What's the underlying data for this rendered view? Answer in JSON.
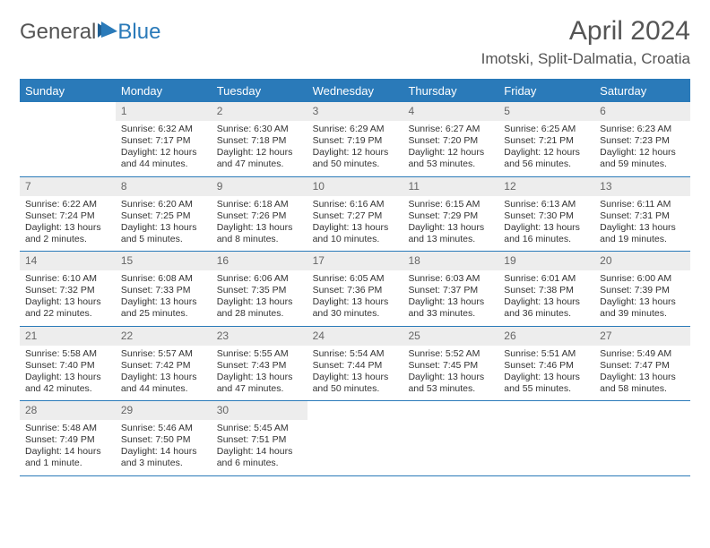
{
  "logo": {
    "part1": "General",
    "part2": "Blue"
  },
  "title": "April 2024",
  "location": "Imotski, Split-Dalmatia, Croatia",
  "colors": {
    "accent": "#2a7ab9",
    "header_bg": "#ededed",
    "text": "#333333",
    "muted": "#555555"
  },
  "day_names": [
    "Sunday",
    "Monday",
    "Tuesday",
    "Wednesday",
    "Thursday",
    "Friday",
    "Saturday"
  ],
  "weeks": [
    [
      {
        "blank": true
      },
      {
        "n": "1",
        "sunrise": "Sunrise: 6:32 AM",
        "sunset": "Sunset: 7:17 PM",
        "day1": "Daylight: 12 hours",
        "day2": "and 44 minutes."
      },
      {
        "n": "2",
        "sunrise": "Sunrise: 6:30 AM",
        "sunset": "Sunset: 7:18 PM",
        "day1": "Daylight: 12 hours",
        "day2": "and 47 minutes."
      },
      {
        "n": "3",
        "sunrise": "Sunrise: 6:29 AM",
        "sunset": "Sunset: 7:19 PM",
        "day1": "Daylight: 12 hours",
        "day2": "and 50 minutes."
      },
      {
        "n": "4",
        "sunrise": "Sunrise: 6:27 AM",
        "sunset": "Sunset: 7:20 PM",
        "day1": "Daylight: 12 hours",
        "day2": "and 53 minutes."
      },
      {
        "n": "5",
        "sunrise": "Sunrise: 6:25 AM",
        "sunset": "Sunset: 7:21 PM",
        "day1": "Daylight: 12 hours",
        "day2": "and 56 minutes."
      },
      {
        "n": "6",
        "sunrise": "Sunrise: 6:23 AM",
        "sunset": "Sunset: 7:23 PM",
        "day1": "Daylight: 12 hours",
        "day2": "and 59 minutes."
      }
    ],
    [
      {
        "n": "7",
        "sunrise": "Sunrise: 6:22 AM",
        "sunset": "Sunset: 7:24 PM",
        "day1": "Daylight: 13 hours",
        "day2": "and 2 minutes."
      },
      {
        "n": "8",
        "sunrise": "Sunrise: 6:20 AM",
        "sunset": "Sunset: 7:25 PM",
        "day1": "Daylight: 13 hours",
        "day2": "and 5 minutes."
      },
      {
        "n": "9",
        "sunrise": "Sunrise: 6:18 AM",
        "sunset": "Sunset: 7:26 PM",
        "day1": "Daylight: 13 hours",
        "day2": "and 8 minutes."
      },
      {
        "n": "10",
        "sunrise": "Sunrise: 6:16 AM",
        "sunset": "Sunset: 7:27 PM",
        "day1": "Daylight: 13 hours",
        "day2": "and 10 minutes."
      },
      {
        "n": "11",
        "sunrise": "Sunrise: 6:15 AM",
        "sunset": "Sunset: 7:29 PM",
        "day1": "Daylight: 13 hours",
        "day2": "and 13 minutes."
      },
      {
        "n": "12",
        "sunrise": "Sunrise: 6:13 AM",
        "sunset": "Sunset: 7:30 PM",
        "day1": "Daylight: 13 hours",
        "day2": "and 16 minutes."
      },
      {
        "n": "13",
        "sunrise": "Sunrise: 6:11 AM",
        "sunset": "Sunset: 7:31 PM",
        "day1": "Daylight: 13 hours",
        "day2": "and 19 minutes."
      }
    ],
    [
      {
        "n": "14",
        "sunrise": "Sunrise: 6:10 AM",
        "sunset": "Sunset: 7:32 PM",
        "day1": "Daylight: 13 hours",
        "day2": "and 22 minutes."
      },
      {
        "n": "15",
        "sunrise": "Sunrise: 6:08 AM",
        "sunset": "Sunset: 7:33 PM",
        "day1": "Daylight: 13 hours",
        "day2": "and 25 minutes."
      },
      {
        "n": "16",
        "sunrise": "Sunrise: 6:06 AM",
        "sunset": "Sunset: 7:35 PM",
        "day1": "Daylight: 13 hours",
        "day2": "and 28 minutes."
      },
      {
        "n": "17",
        "sunrise": "Sunrise: 6:05 AM",
        "sunset": "Sunset: 7:36 PM",
        "day1": "Daylight: 13 hours",
        "day2": "and 30 minutes."
      },
      {
        "n": "18",
        "sunrise": "Sunrise: 6:03 AM",
        "sunset": "Sunset: 7:37 PM",
        "day1": "Daylight: 13 hours",
        "day2": "and 33 minutes."
      },
      {
        "n": "19",
        "sunrise": "Sunrise: 6:01 AM",
        "sunset": "Sunset: 7:38 PM",
        "day1": "Daylight: 13 hours",
        "day2": "and 36 minutes."
      },
      {
        "n": "20",
        "sunrise": "Sunrise: 6:00 AM",
        "sunset": "Sunset: 7:39 PM",
        "day1": "Daylight: 13 hours",
        "day2": "and 39 minutes."
      }
    ],
    [
      {
        "n": "21",
        "sunrise": "Sunrise: 5:58 AM",
        "sunset": "Sunset: 7:40 PM",
        "day1": "Daylight: 13 hours",
        "day2": "and 42 minutes."
      },
      {
        "n": "22",
        "sunrise": "Sunrise: 5:57 AM",
        "sunset": "Sunset: 7:42 PM",
        "day1": "Daylight: 13 hours",
        "day2": "and 44 minutes."
      },
      {
        "n": "23",
        "sunrise": "Sunrise: 5:55 AM",
        "sunset": "Sunset: 7:43 PM",
        "day1": "Daylight: 13 hours",
        "day2": "and 47 minutes."
      },
      {
        "n": "24",
        "sunrise": "Sunrise: 5:54 AM",
        "sunset": "Sunset: 7:44 PM",
        "day1": "Daylight: 13 hours",
        "day2": "and 50 minutes."
      },
      {
        "n": "25",
        "sunrise": "Sunrise: 5:52 AM",
        "sunset": "Sunset: 7:45 PM",
        "day1": "Daylight: 13 hours",
        "day2": "and 53 minutes."
      },
      {
        "n": "26",
        "sunrise": "Sunrise: 5:51 AM",
        "sunset": "Sunset: 7:46 PM",
        "day1": "Daylight: 13 hours",
        "day2": "and 55 minutes."
      },
      {
        "n": "27",
        "sunrise": "Sunrise: 5:49 AM",
        "sunset": "Sunset: 7:47 PM",
        "day1": "Daylight: 13 hours",
        "day2": "and 58 minutes."
      }
    ],
    [
      {
        "n": "28",
        "sunrise": "Sunrise: 5:48 AM",
        "sunset": "Sunset: 7:49 PM",
        "day1": "Daylight: 14 hours",
        "day2": "and 1 minute."
      },
      {
        "n": "29",
        "sunrise": "Sunrise: 5:46 AM",
        "sunset": "Sunset: 7:50 PM",
        "day1": "Daylight: 14 hours",
        "day2": "and 3 minutes."
      },
      {
        "n": "30",
        "sunrise": "Sunrise: 5:45 AM",
        "sunset": "Sunset: 7:51 PM",
        "day1": "Daylight: 14 hours",
        "day2": "and 6 minutes."
      },
      {
        "blank": true
      },
      {
        "blank": true
      },
      {
        "blank": true
      },
      {
        "blank": true
      }
    ]
  ]
}
